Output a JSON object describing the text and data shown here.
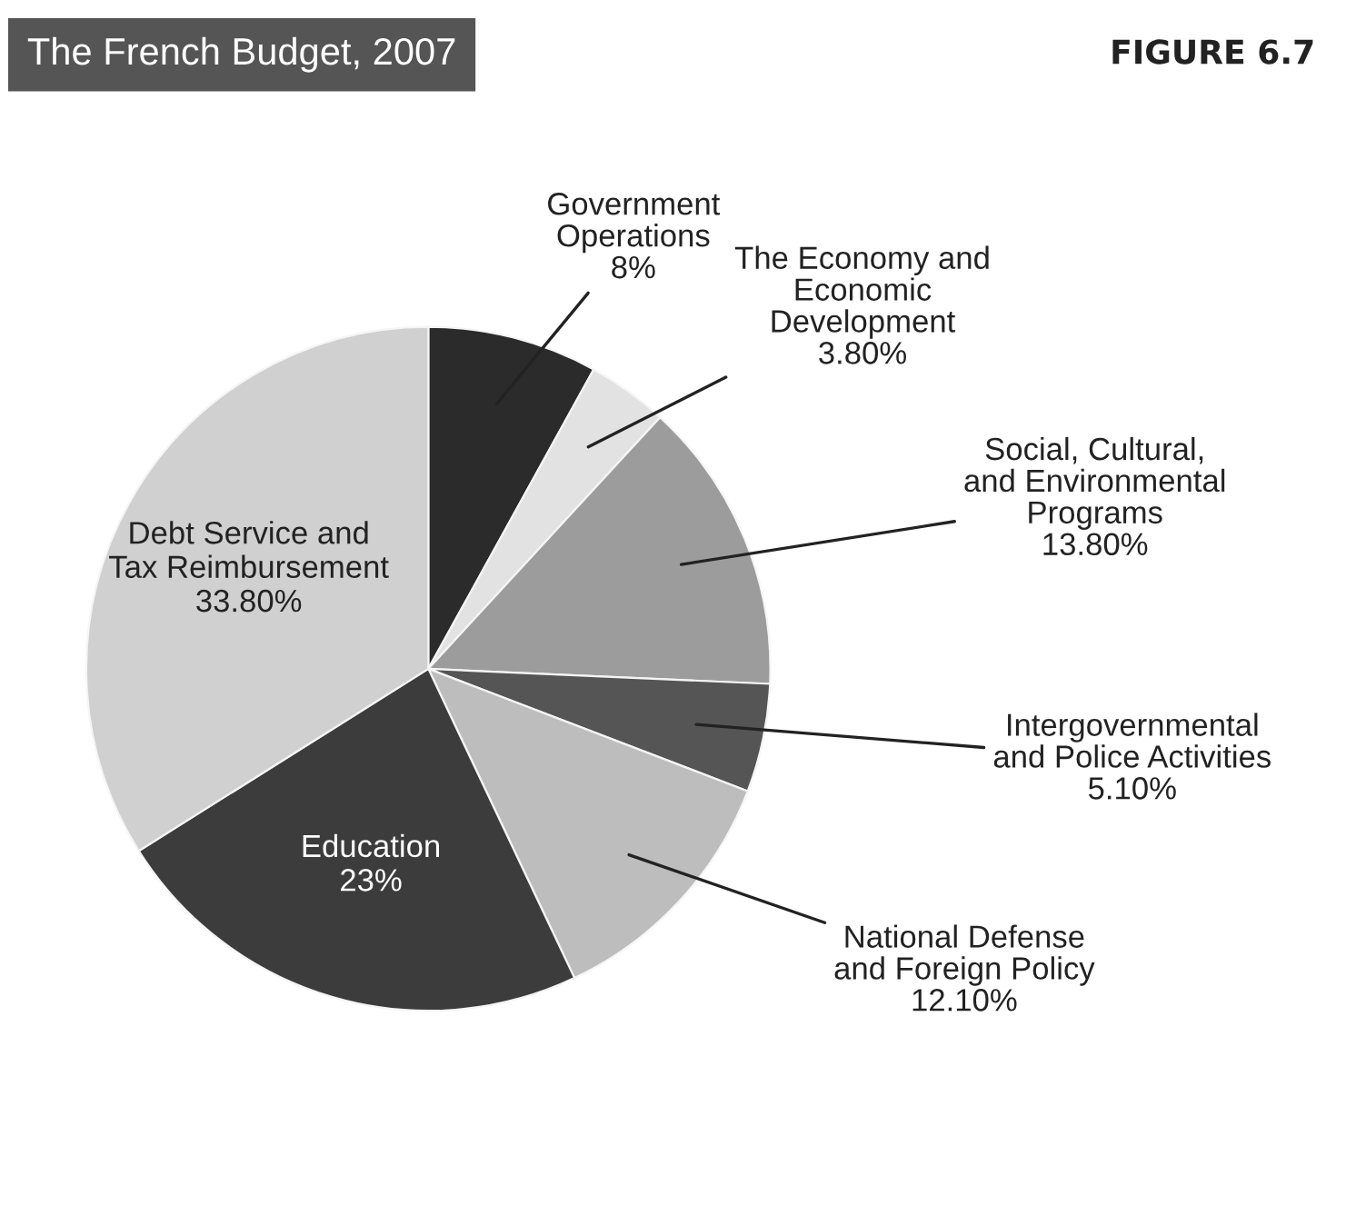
{
  "chart_data": {
    "type": "pie",
    "title": "The French Budget, 2007",
    "annotations": [
      "FIGURE 6.7"
    ],
    "categories": [
      "Government\nOperations",
      "The Economy and\nEconomic\nDevelopment",
      "Social, Cultural,\nand Environmental\nPrograms",
      "Intergovernmental\nand Police Activities",
      "National Defense\nand Foreign Policy",
      "Education",
      "Debt Service and\nTax Reimbursement"
    ],
    "values": [
      8,
      3.8,
      13.8,
      5.1,
      12.1,
      23,
      33.8
    ],
    "value_labels": [
      "8%",
      "3.80%",
      "13.80%",
      "5.10%",
      "12.10%",
      "23%",
      "33.80%"
    ],
    "colors": [
      "#2b2b2b",
      "#e2e2e2",
      "#9c9c9c",
      "#555555",
      "#bdbdbd",
      "#3c3c3c",
      "#d0d0d0"
    ],
    "legend": false
  }
}
